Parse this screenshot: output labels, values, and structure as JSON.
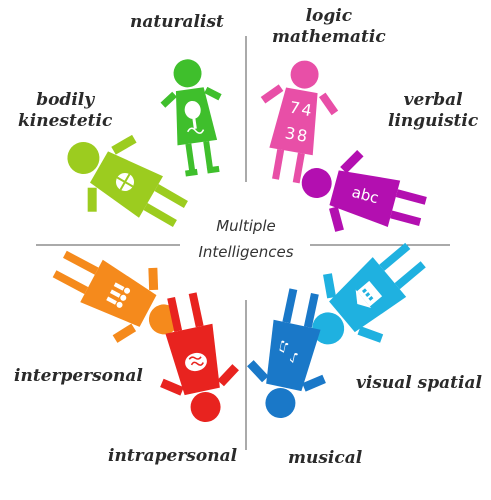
{
  "center": {
    "line1": "Multiple",
    "line2": "Intelligences"
  },
  "labels": {
    "naturalist": [
      "naturalist"
    ],
    "logic": [
      "logic",
      "mathematic"
    ],
    "verbal": [
      "verbal",
      "linguistic"
    ],
    "bodily": [
      "bodily",
      "kinestetic"
    ],
    "visual": [
      "visual spatial"
    ],
    "interpersonal": [
      "interpersonal"
    ],
    "intrapersonal": [
      "intrapersonal"
    ],
    "musical": [
      "musical"
    ]
  },
  "figures": {
    "naturalist": {
      "color": "#3fbf2c",
      "icon": "tree-icon"
    },
    "logic": {
      "color": "#e84fa7",
      "icon": "numbers-icon",
      "glyphs": "7438"
    },
    "verbal": {
      "color": "#b30fb0",
      "icon": "letters-icon",
      "glyphs": "abc"
    },
    "bodily": {
      "color": "#9ccc1f",
      "icon": "ball-icon"
    },
    "visual": {
      "color": "#1fb1e0",
      "icon": "building-icon"
    },
    "interpersonal": {
      "color": "#f58a1c",
      "icon": "people-icon"
    },
    "intrapersonal": {
      "color": "#e8231f",
      "icon": "brain-icon"
    },
    "musical": {
      "color": "#1a78c8",
      "icon": "music-notes-icon"
    }
  },
  "dividers": {
    "color": "#555555"
  }
}
